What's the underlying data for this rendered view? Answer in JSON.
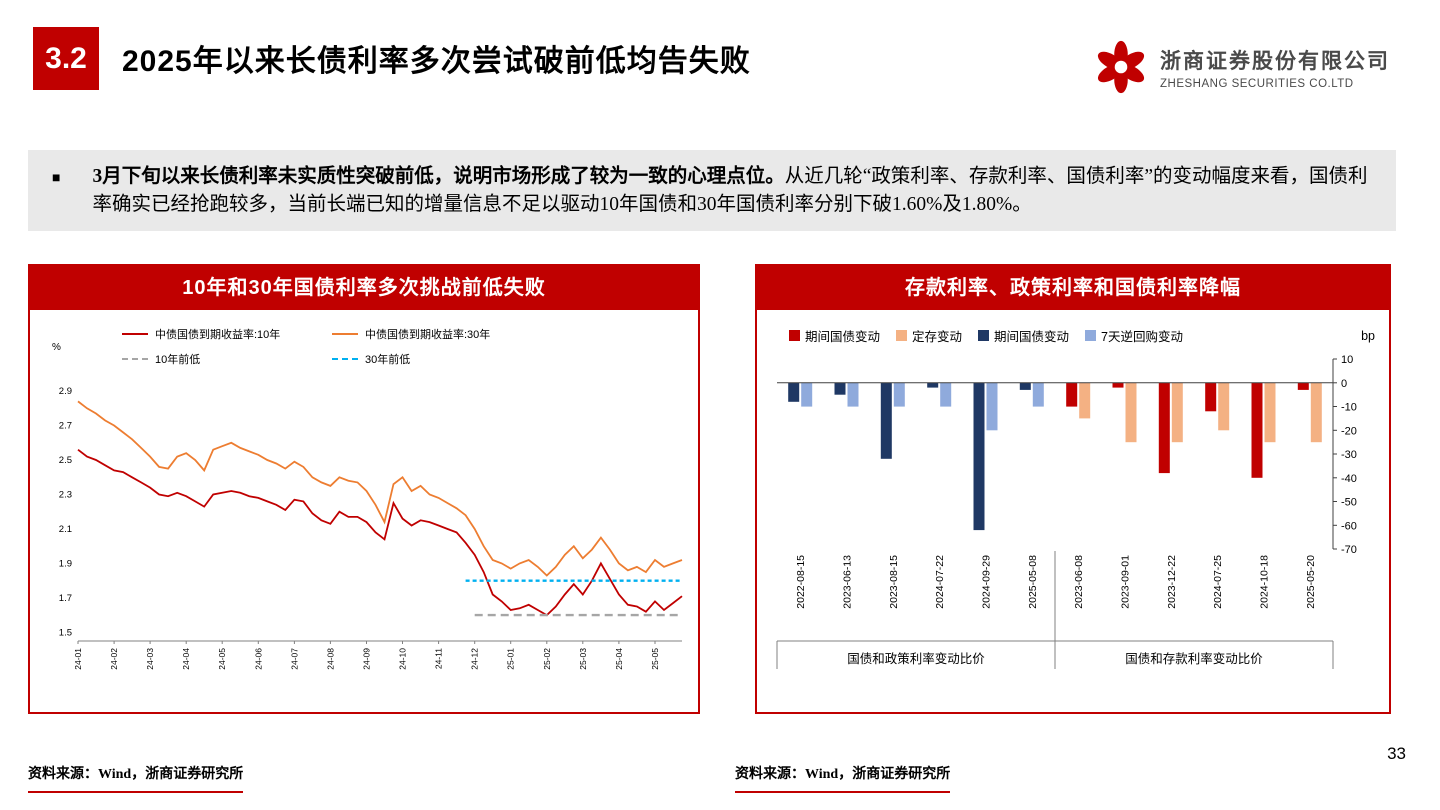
{
  "header": {
    "section_number": "3.2",
    "title": "2025年以来长债利率多次尝试破前低均告失败",
    "logo": {
      "company_cn": "浙商证券股份有限公司",
      "company_en": "ZHESHANG SECURITIES CO.LTD"
    }
  },
  "summary": {
    "bullet": "■",
    "bold": "3月下旬以来长债利率未实质性突破前低，说明市场形成了较为一致的心理点位。",
    "regular": "从近几轮“政策利率、存款利率、国债利率”的变动幅度来看，国债利率确实已经抢跑较多，当前长端已知的增量信息不足以驱动10年国债和30年国债利率分别下破1.60%及1.80%。"
  },
  "left_panel": {
    "title": "10年和30年国债利率多次挑战前低失败",
    "source": "资料来源：Wind，浙商证券研究所"
  },
  "right_panel": {
    "title": "存款利率、政策利率和国债利率降幅",
    "source": "资料来源：Wind，浙商证券研究所"
  },
  "page_number": "33",
  "chart_data": [
    {
      "type": "line",
      "title": "10年和30年国债利率多次挑战前低失败",
      "unit": "%",
      "ylim": [
        1.45,
        2.97
      ],
      "yticks": [
        2.9,
        2.7,
        2.5,
        2.3,
        2.1,
        1.9,
        1.7,
        1.5
      ],
      "x_labels": [
        "24-01",
        "24-02",
        "24-03",
        "24-04",
        "24-05",
        "24-06",
        "24-07",
        "24-08",
        "24-09",
        "24-10",
        "24-11",
        "24-12",
        "25-01",
        "25-02",
        "25-03",
        "25-04",
        "25-05"
      ],
      "points_per_label": 4,
      "legend_position": "top",
      "grid": false,
      "series": [
        {
          "name": "中债国债到期收益率:10年",
          "color": "#C00000",
          "values": [
            2.56,
            2.52,
            2.5,
            2.47,
            2.44,
            2.43,
            2.4,
            2.37,
            2.34,
            2.3,
            2.29,
            2.31,
            2.29,
            2.26,
            2.23,
            2.3,
            2.31,
            2.32,
            2.31,
            2.29,
            2.28,
            2.26,
            2.24,
            2.21,
            2.27,
            2.26,
            2.19,
            2.15,
            2.13,
            2.2,
            2.17,
            2.17,
            2.14,
            2.08,
            2.04,
            2.25,
            2.16,
            2.12,
            2.15,
            2.14,
            2.12,
            2.1,
            2.08,
            2.02,
            1.95,
            1.85,
            1.72,
            1.68,
            1.63,
            1.64,
            1.66,
            1.63,
            1.6,
            1.65,
            1.72,
            1.78,
            1.72,
            1.8,
            1.9,
            1.81,
            1.72,
            1.66,
            1.65,
            1.62,
            1.68,
            1.63,
            1.67,
            1.71
          ]
        },
        {
          "name": "中债国债到期收益率:30年",
          "color": "#ED7D31",
          "values": [
            2.84,
            2.8,
            2.77,
            2.73,
            2.7,
            2.66,
            2.62,
            2.57,
            2.52,
            2.46,
            2.45,
            2.52,
            2.54,
            2.5,
            2.44,
            2.56,
            2.58,
            2.6,
            2.57,
            2.55,
            2.53,
            2.5,
            2.48,
            2.45,
            2.49,
            2.46,
            2.4,
            2.37,
            2.35,
            2.4,
            2.38,
            2.37,
            2.32,
            2.24,
            2.14,
            2.36,
            2.4,
            2.32,
            2.35,
            2.3,
            2.28,
            2.25,
            2.22,
            2.18,
            2.1,
            2.0,
            1.92,
            1.9,
            1.87,
            1.9,
            1.92,
            1.88,
            1.83,
            1.88,
            1.95,
            2.0,
            1.93,
            1.98,
            2.05,
            1.98,
            1.9,
            1.86,
            1.88,
            1.85,
            1.92,
            1.88,
            1.9,
            1.92
          ]
        },
        {
          "name": "10年前低",
          "color": "#A6A6A6",
          "level": 1.6,
          "start_index": 44,
          "dash": "8 5"
        },
        {
          "name": "30年前低",
          "color": "#00B0F0",
          "level": 1.8,
          "start_index": 43,
          "dash": "4 3"
        }
      ]
    },
    {
      "type": "bar",
      "title": "存款利率、政策利率和国债利率降幅",
      "unit": "bp",
      "ylim": [
        -70,
        10
      ],
      "yticks": [
        10,
        0,
        -10,
        -20,
        -30,
        -40,
        -50,
        -60,
        -70
      ],
      "legend_position": "top",
      "legend": [
        {
          "label": "期间国债变动",
          "color": "#C00000"
        },
        {
          "label": "定存变动",
          "color": "#F4B183"
        },
        {
          "label": "期间国债变动",
          "color": "#1F3864"
        },
        {
          "label": "7天逆回购变动",
          "color": "#8FAADC"
        }
      ],
      "groups": [
        {
          "label": "国债和政策利率变动比价",
          "categories": [
            "2022-08-15",
            "2023-06-13",
            "2023-08-15",
            "2024-07-22",
            "2024-09-29",
            "2025-05-08"
          ],
          "series": [
            {
              "name": "期间国债变动",
              "color": "#1F3864",
              "values": [
                -8,
                -5,
                -32,
                -2,
                -62,
                -3
              ]
            },
            {
              "name": "7天逆回购变动",
              "color": "#8FAADC",
              "values": [
                -10,
                -10,
                -10,
                -10,
                -20,
                -10
              ]
            }
          ]
        },
        {
          "label": "国债和存款利率变动比价",
          "categories": [
            "2023-06-08",
            "2023-09-01",
            "2023-12-22",
            "2024-07-25",
            "2024-10-18",
            "2025-05-20"
          ],
          "series": [
            {
              "name": "期间国债变动",
              "color": "#C00000",
              "values": [
                -10,
                -2,
                -38,
                -12,
                -40,
                -3
              ]
            },
            {
              "name": "定存变动",
              "color": "#F4B183",
              "values": [
                -15,
                -25,
                -25,
                -20,
                -25,
                -25
              ]
            }
          ]
        }
      ]
    }
  ]
}
